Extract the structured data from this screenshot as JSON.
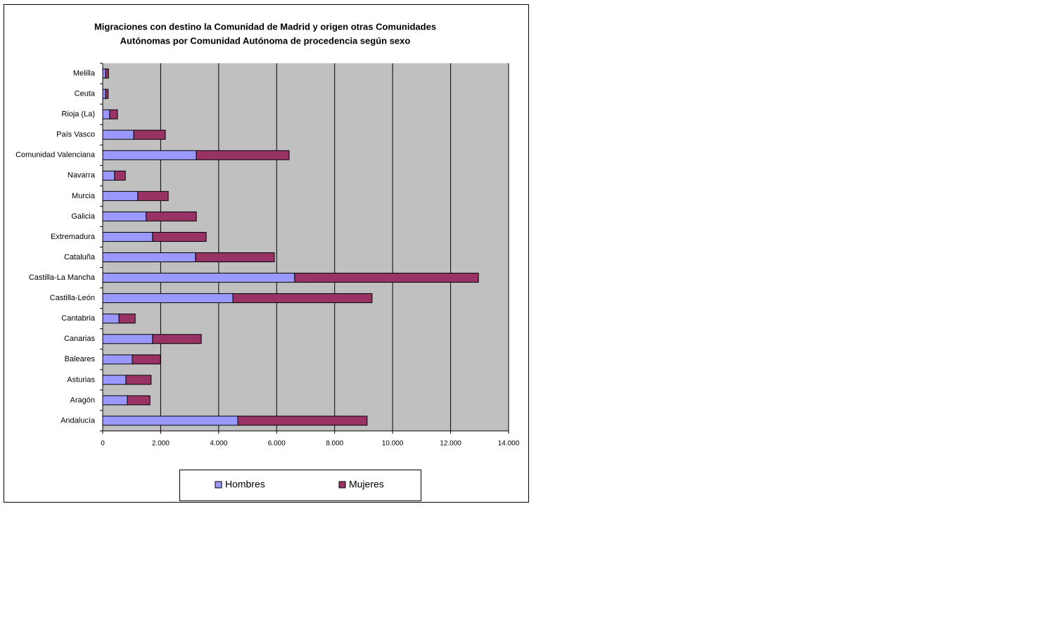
{
  "chart_data": {
    "type": "stacked-bar-horizontal",
    "title": [
      "Migraciones con destino la Comunidad de Madrid y origen otras Comunidades",
      "Autónomas por Comunidad Autónoma de procedencia según sexo"
    ],
    "categories": [
      "Andalucía",
      "Aragón",
      "Asturias",
      "Baleares",
      "Canarias",
      "Cantabria",
      "Castilla-León",
      "Castilla-La Mancha",
      "Cataluña",
      "Extremadura",
      "Galicia",
      "Murcia",
      "Navarra",
      "Comunidad Valenciana",
      "País Vasco",
      "Rioja (La)",
      "Ceuta",
      "Melilla"
    ],
    "series": [
      {
        "name": "Hombres",
        "color": "#9999ff",
        "values": [
          4660,
          850,
          800,
          1020,
          1720,
          560,
          4490,
          6620,
          3200,
          1720,
          1500,
          1210,
          410,
          3230,
          1070,
          240,
          100,
          100
        ]
      },
      {
        "name": "Mujeres",
        "color": "#993366",
        "values": [
          4460,
          780,
          870,
          970,
          1680,
          560,
          4800,
          6340,
          2720,
          1850,
          1730,
          1050,
          370,
          3200,
          1090,
          270,
          90,
          100
        ]
      }
    ],
    "xlim": [
      0,
      14000
    ],
    "xticks": [
      0,
      {
        "value": 2000,
        "label": "2.000"
      },
      {
        "value": 4000,
        "label": "4.000"
      },
      {
        "value": 6000,
        "label": "6.000"
      },
      {
        "value": 8000,
        "label": "8.000"
      },
      {
        "value": 10000,
        "label": "10.000"
      },
      {
        "value": 12000,
        "label": "12.000"
      },
      {
        "value": 14000,
        "label": "14.000"
      }
    ],
    "grid": true,
    "plot_background": "#c0c0c0",
    "legend": "bottom"
  }
}
